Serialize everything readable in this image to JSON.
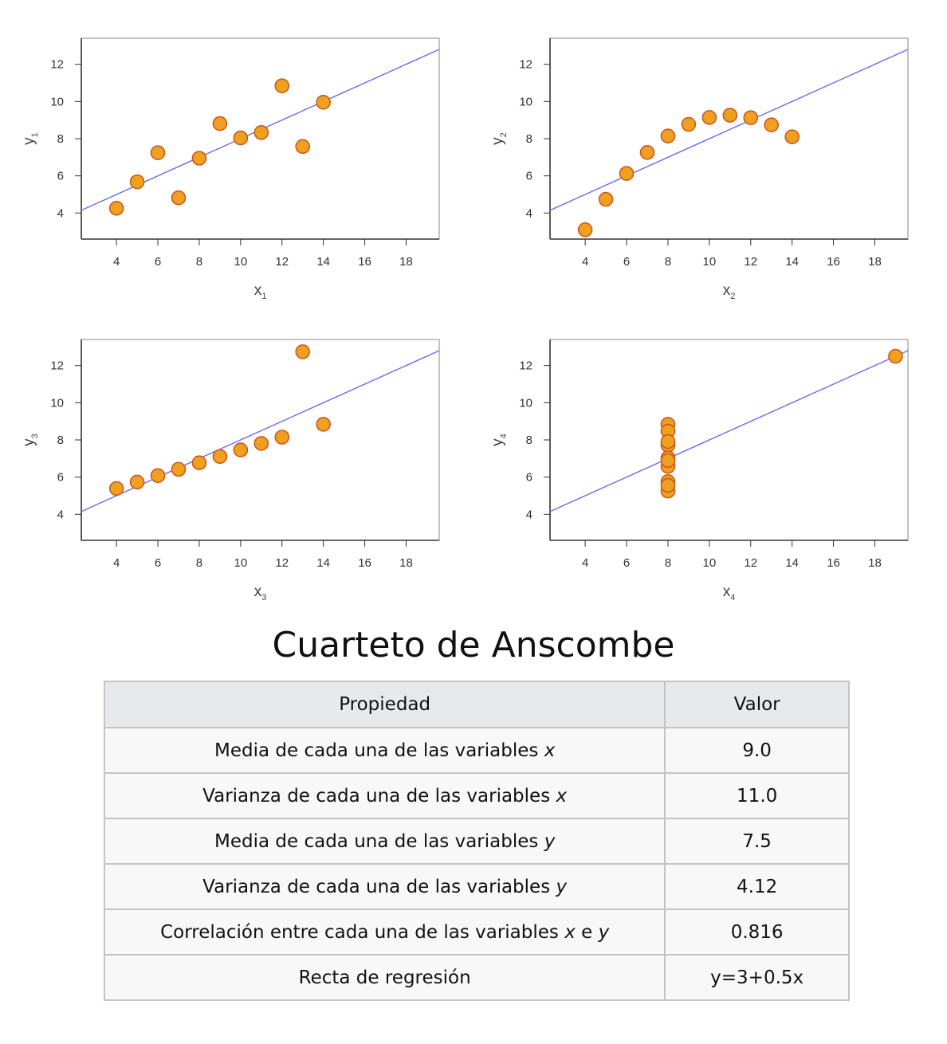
{
  "chart_data": [
    {
      "type": "scatter",
      "xlabel": "x",
      "xlabel_sub": "1",
      "ylabel": "y",
      "ylabel_sub": "1",
      "xlim": [
        2.3,
        19.6
      ],
      "ylim": [
        2.6,
        13.4
      ],
      "xticks": [
        4,
        6,
        8,
        10,
        12,
        14,
        16,
        18
      ],
      "yticks": [
        4,
        6,
        8,
        10,
        12
      ],
      "regression": {
        "intercept": 3,
        "slope": 0.5
      },
      "points": [
        [
          10,
          8.04
        ],
        [
          8,
          6.95
        ],
        [
          13,
          7.58
        ],
        [
          9,
          8.81
        ],
        [
          11,
          8.33
        ],
        [
          14,
          9.96
        ],
        [
          6,
          7.24
        ],
        [
          4,
          4.26
        ],
        [
          12,
          10.84
        ],
        [
          7,
          4.82
        ],
        [
          5,
          5.68
        ]
      ]
    },
    {
      "type": "scatter",
      "xlabel": "x",
      "xlabel_sub": "2",
      "ylabel": "y",
      "ylabel_sub": "2",
      "xlim": [
        2.3,
        19.6
      ],
      "ylim": [
        2.6,
        13.4
      ],
      "xticks": [
        4,
        6,
        8,
        10,
        12,
        14,
        16,
        18
      ],
      "yticks": [
        4,
        6,
        8,
        10,
        12
      ],
      "regression": {
        "intercept": 3,
        "slope": 0.5
      },
      "points": [
        [
          10,
          9.14
        ],
        [
          8,
          8.14
        ],
        [
          13,
          8.74
        ],
        [
          9,
          8.77
        ],
        [
          11,
          9.26
        ],
        [
          14,
          8.1
        ],
        [
          6,
          6.13
        ],
        [
          4,
          3.1
        ],
        [
          12,
          9.13
        ],
        [
          7,
          7.26
        ],
        [
          5,
          4.74
        ]
      ]
    },
    {
      "type": "scatter",
      "xlabel": "x",
      "xlabel_sub": "3",
      "ylabel": "y",
      "ylabel_sub": "3",
      "xlim": [
        2.3,
        19.6
      ],
      "ylim": [
        2.6,
        13.4
      ],
      "xticks": [
        4,
        6,
        8,
        10,
        12,
        14,
        16,
        18
      ],
      "yticks": [
        4,
        6,
        8,
        10,
        12
      ],
      "regression": {
        "intercept": 3,
        "slope": 0.5
      },
      "points": [
        [
          10,
          7.46
        ],
        [
          8,
          6.77
        ],
        [
          13,
          12.74
        ],
        [
          9,
          7.11
        ],
        [
          11,
          7.81
        ],
        [
          14,
          8.84
        ],
        [
          6,
          6.08
        ],
        [
          4,
          5.39
        ],
        [
          12,
          8.15
        ],
        [
          7,
          6.42
        ],
        [
          5,
          5.73
        ]
      ]
    },
    {
      "type": "scatter",
      "xlabel": "x",
      "xlabel_sub": "4",
      "ylabel": "y",
      "ylabel_sub": "4",
      "xlim": [
        2.3,
        19.6
      ],
      "ylim": [
        2.6,
        13.4
      ],
      "xticks": [
        4,
        6,
        8,
        10,
        12,
        14,
        16,
        18
      ],
      "yticks": [
        4,
        6,
        8,
        10,
        12
      ],
      "regression": {
        "intercept": 3,
        "slope": 0.5
      },
      "points": [
        [
          8,
          6.58
        ],
        [
          8,
          5.76
        ],
        [
          8,
          7.71
        ],
        [
          8,
          8.84
        ],
        [
          8,
          8.47
        ],
        [
          8,
          7.04
        ],
        [
          8,
          5.25
        ],
        [
          19,
          12.5
        ],
        [
          8,
          5.56
        ],
        [
          8,
          7.91
        ],
        [
          8,
          6.89
        ]
      ]
    }
  ],
  "colors": {
    "point_fill": "#f0a020",
    "point_stroke": "#cc5a1e",
    "regression_line": "#6a6af0",
    "axis": "#333333"
  },
  "title": "Cuarteto de Anscombe",
  "table": {
    "headers": [
      "Propiedad",
      "Valor"
    ],
    "rows": [
      {
        "text": "Media de cada una de las variables ",
        "var": "x",
        "value": "9.0"
      },
      {
        "text": "Varianza de cada una de las variables ",
        "var": "x",
        "value": "11.0"
      },
      {
        "text": "Media de cada una de las variables ",
        "var": "y",
        "value": "7.5"
      },
      {
        "text": "Varianza de cada una de las variables ",
        "var": "y",
        "value": "4.12"
      },
      {
        "text": "Correlación entre cada una de las variables ",
        "var": "x",
        "mid": " e ",
        "var2": "y",
        "value": "0.816"
      },
      {
        "text": "Recta de regresión",
        "value": "y=3+0.5x"
      }
    ]
  }
}
